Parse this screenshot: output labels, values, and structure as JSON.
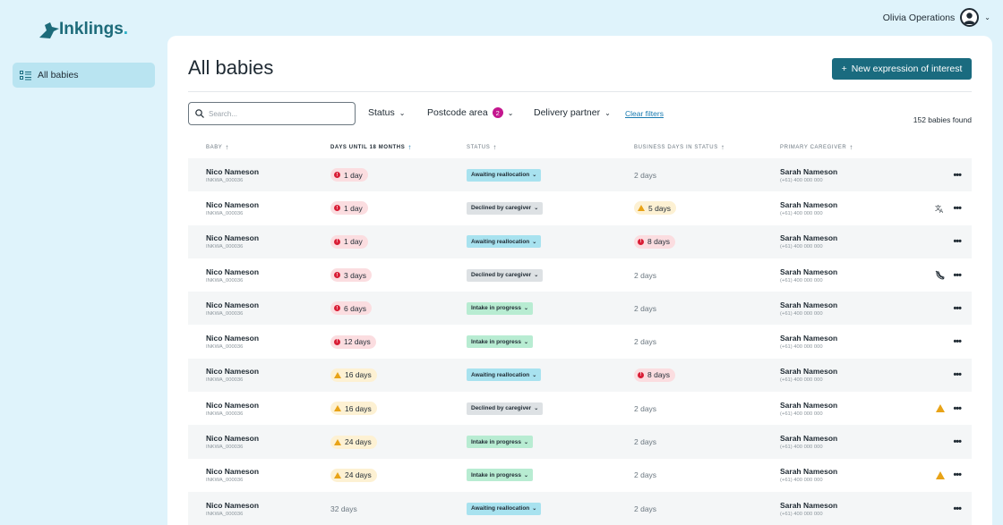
{
  "brand": {
    "logo_text": "Inklings",
    "accent": "#1a6b7f"
  },
  "user": {
    "name": "Olivia Operations"
  },
  "sidebar": {
    "items": [
      {
        "label": "All babies",
        "icon": "list-icon"
      }
    ]
  },
  "page": {
    "title": "All babies",
    "new_button": "New expression of interest",
    "search_placeholder": "Search...",
    "filters": {
      "status": "Status",
      "postcode": "Postcode area",
      "postcode_count": "2",
      "delivery": "Delivery partner",
      "clear": "Clear filters"
    },
    "found": "152 babies found"
  },
  "table": {
    "headers": {
      "baby": "BABY",
      "days": "DAYS UNTIL 18 MONTHS",
      "status": "STATUS",
      "business": "BUSINESS DAYS IN STATUS",
      "caregiver": "PRIMARY CAREGIVER"
    },
    "rows": [
      {
        "name": "Nico Nameson",
        "id": "INKWA_000036",
        "days": "1 day",
        "days_level": "red",
        "status": "Awaiting reallocation",
        "status_kind": "reloc",
        "biz": "2 days",
        "biz_level": "none",
        "cg_name": "Sarah Nameson",
        "cg_phone": "(+61) 400 000 000",
        "flag": ""
      },
      {
        "name": "Nico Nameson",
        "id": "INKWA_000036",
        "days": "1 day",
        "days_level": "red",
        "status": "Declined by caregiver",
        "status_kind": "declined",
        "biz": "5 days",
        "biz_level": "yellow",
        "cg_name": "Sarah Nameson",
        "cg_phone": "(+61) 400 000 000",
        "flag": "translate-icon"
      },
      {
        "name": "Nico Nameson",
        "id": "INKWA_000036",
        "days": "1 day",
        "days_level": "red",
        "status": "Awaiting reallocation",
        "status_kind": "reloc",
        "biz": "8 days",
        "biz_level": "red",
        "cg_name": "Sarah Nameson",
        "cg_phone": "(+61) 400 000 000",
        "flag": ""
      },
      {
        "name": "Nico Nameson",
        "id": "INKWA_000036",
        "days": "3 days",
        "days_level": "red",
        "status": "Declined by caregiver",
        "status_kind": "declined",
        "biz": "2 days",
        "biz_level": "none",
        "cg_name": "Sarah Nameson",
        "cg_phone": "(+61) 400 000 000",
        "flag": "no-phone-icon"
      },
      {
        "name": "Nico Nameson",
        "id": "INKWA_000036",
        "days": "6 days",
        "days_level": "red",
        "status": "Intake in progress",
        "status_kind": "intake",
        "biz": "2 days",
        "biz_level": "none",
        "cg_name": "Sarah Nameson",
        "cg_phone": "(+61) 400 000 000",
        "flag": ""
      },
      {
        "name": "Nico Nameson",
        "id": "INKWA_000036",
        "days": "12 days",
        "days_level": "red",
        "status": "Intake in progress",
        "status_kind": "intake",
        "biz": "2 days",
        "biz_level": "none",
        "cg_name": "Sarah Nameson",
        "cg_phone": "(+61) 400 000 000",
        "flag": ""
      },
      {
        "name": "Nico Nameson",
        "id": "INKWA_000036",
        "days": "16 days",
        "days_level": "yellow",
        "status": "Awaiting reallocation",
        "status_kind": "reloc",
        "biz": "8 days",
        "biz_level": "red",
        "cg_name": "Sarah Nameson",
        "cg_phone": "(+61) 400 000 000",
        "flag": ""
      },
      {
        "name": "Nico Nameson",
        "id": "INKWA_000036",
        "days": "16 days",
        "days_level": "yellow",
        "status": "Declined by caregiver",
        "status_kind": "declined",
        "biz": "2 days",
        "biz_level": "none",
        "cg_name": "Sarah Nameson",
        "cg_phone": "(+61) 400 000 000",
        "flag": "warning-icon"
      },
      {
        "name": "Nico Nameson",
        "id": "INKWA_000036",
        "days": "24 days",
        "days_level": "yellow",
        "status": "Intake in progress",
        "status_kind": "intake",
        "biz": "2 days",
        "biz_level": "none",
        "cg_name": "Sarah Nameson",
        "cg_phone": "(+61) 400 000 000",
        "flag": ""
      },
      {
        "name": "Nico Nameson",
        "id": "INKWA_000036",
        "days": "24 days",
        "days_level": "yellow",
        "status": "Intake in progress",
        "status_kind": "intake",
        "biz": "2 days",
        "biz_level": "none",
        "cg_name": "Sarah Nameson",
        "cg_phone": "(+61) 400 000 000",
        "flag": "warning-icon"
      },
      {
        "name": "Nico Nameson",
        "id": "INKWA_000036",
        "days": "32 days",
        "days_level": "none",
        "status": "Awaiting reallocation",
        "status_kind": "reloc",
        "biz": "2 days",
        "biz_level": "none",
        "cg_name": "Sarah Nameson",
        "cg_phone": "(+61) 400 000 000",
        "flag": ""
      }
    ]
  }
}
